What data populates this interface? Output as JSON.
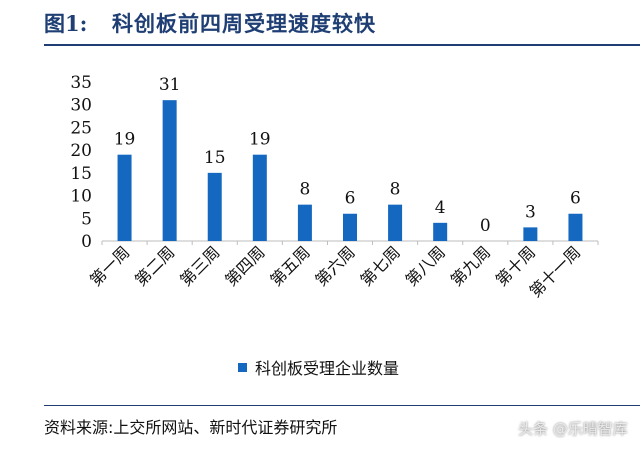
{
  "header": {
    "fig_label": "图1:",
    "title": "科创板前四周受理速度较快"
  },
  "chart_data": {
    "type": "bar",
    "title": "科创板前四周受理速度较快",
    "categories": [
      "第一周",
      "第二周",
      "第三周",
      "第四周",
      "第五周",
      "第六周",
      "第七周",
      "第八周",
      "第九周",
      "第十周",
      "第十一周"
    ],
    "series": [
      {
        "name": "科创板受理企业数量",
        "values": [
          19,
          31,
          15,
          19,
          8,
          6,
          8,
          4,
          0,
          3,
          6
        ]
      }
    ],
    "ylim": [
      0,
      35
    ],
    "yticks": [
      0,
      5,
      10,
      15,
      20,
      25,
      30,
      35
    ],
    "xlabel": "",
    "ylabel": "",
    "grid": false,
    "legend_position": "bottom",
    "bar_color": "#1468c0"
  },
  "footer": {
    "source": "资料来源:上交所网站、新时代证券研究所",
    "watermark": "头条 @乐晴智库"
  }
}
